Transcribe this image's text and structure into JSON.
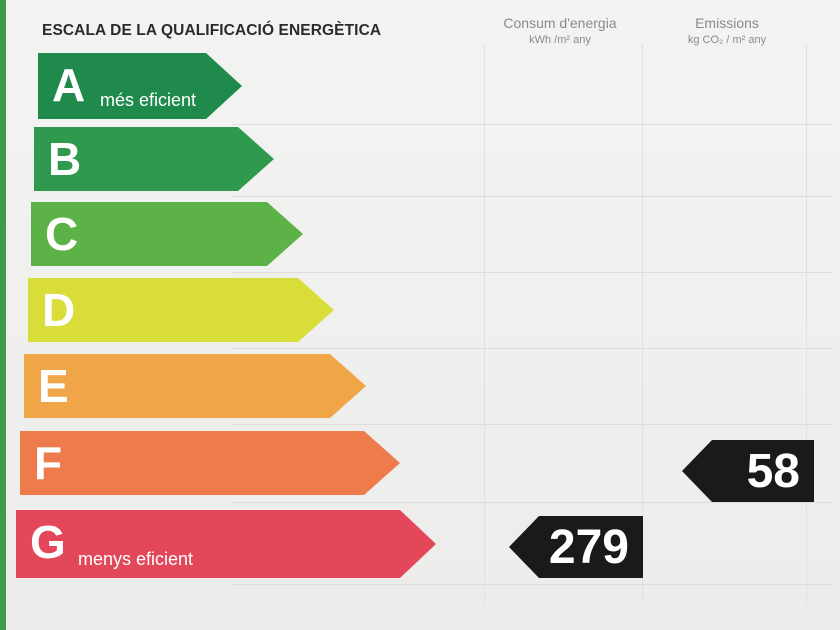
{
  "title": "ESCALA DE LA QUALIFICACIÓ ENERGÈTICA",
  "columns": {
    "consumption": {
      "label": "Consum d'energia",
      "unit": "kWh /m² any"
    },
    "emissions": {
      "label": "Emissions",
      "unit": "kg CO₂ / m² any"
    }
  },
  "bands": [
    {
      "letter": "A",
      "caption": "més eficient",
      "color": "#1f8a4c"
    },
    {
      "letter": "B",
      "caption": "",
      "color": "#2f9a4e"
    },
    {
      "letter": "C",
      "caption": "",
      "color": "#5cb246"
    },
    {
      "letter": "D",
      "caption": "",
      "color": "#d9dd3a"
    },
    {
      "letter": "E",
      "caption": "",
      "color": "#f0a548"
    },
    {
      "letter": "F",
      "caption": "",
      "color": "#ee7b4c"
    },
    {
      "letter": "G",
      "caption": "menys eficient",
      "color": "#e2475a"
    }
  ],
  "ratings": {
    "consumption": {
      "value": "279",
      "band": "G"
    },
    "emissions": {
      "value": "58",
      "band": "F"
    }
  }
}
